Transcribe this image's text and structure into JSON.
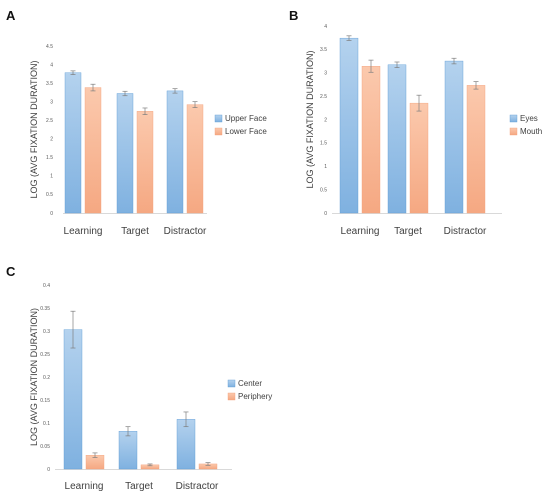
{
  "colors": {
    "series_blue": "#9dc3e6",
    "series_blue_edge": "#5b9bd5",
    "series_orange": "#f8b895",
    "series_orange_edge": "#f4a07a",
    "axis": "#d9d9d9",
    "error_bar": "#7f7f7f"
  },
  "chart_data": [
    {
      "type": "bar",
      "panel": "A",
      "ylabel": "LOG (AVG FIXATION DURATION)",
      "categories": [
        "Learning",
        "Target",
        "Distractor"
      ],
      "ylim": [
        0,
        4.5
      ],
      "yticks": [
        "0",
        "0.5",
        "1",
        "1.5",
        "2",
        "2.5",
        "3",
        "3.5",
        "4",
        "4.5"
      ],
      "legend_position": "right",
      "series": [
        {
          "name": "Upper Face",
          "values": [
            3.78,
            3.22,
            3.29
          ],
          "errors": [
            0.05,
            0.06,
            0.06
          ]
        },
        {
          "name": "Lower Face",
          "values": [
            3.38,
            2.74,
            2.92
          ],
          "errors": [
            0.09,
            0.09,
            0.08
          ]
        }
      ]
    },
    {
      "type": "bar",
      "panel": "B",
      "ylabel": "LOG (AVG FIXATION DURATION)",
      "categories": [
        "Learning",
        "Target",
        "Distractor"
      ],
      "ylim": [
        0,
        4
      ],
      "yticks": [
        "0",
        "0.5",
        "1",
        "1.5",
        "2",
        "2.5",
        "3",
        "3.5",
        "4"
      ],
      "legend_position": "right",
      "series": [
        {
          "name": "Eyes",
          "values": [
            3.74,
            3.17,
            3.25
          ],
          "errors": [
            0.05,
            0.06,
            0.06
          ]
        },
        {
          "name": "Mouth",
          "values": [
            3.14,
            2.35,
            2.73
          ],
          "errors": [
            0.13,
            0.17,
            0.08
          ]
        }
      ]
    },
    {
      "type": "bar",
      "panel": "C",
      "ylabel": "LOG (AVG FIXATION DURATION)",
      "categories": [
        "Learning",
        "Target",
        "Distractor"
      ],
      "ylim": [
        0,
        0.4
      ],
      "yticks": [
        "0",
        "0.05",
        "0.1",
        "0.15",
        "0.2",
        "0.25",
        "0.3",
        "0.35",
        "0.4"
      ],
      "legend_position": "right",
      "series": [
        {
          "name": "Center",
          "values": [
            0.303,
            0.082,
            0.108
          ],
          "errors": [
            0.04,
            0.01,
            0.016
          ]
        },
        {
          "name": "Periphery",
          "values": [
            0.03,
            0.009,
            0.011
          ],
          "errors": [
            0.005,
            0.002,
            0.003
          ]
        }
      ]
    }
  ]
}
